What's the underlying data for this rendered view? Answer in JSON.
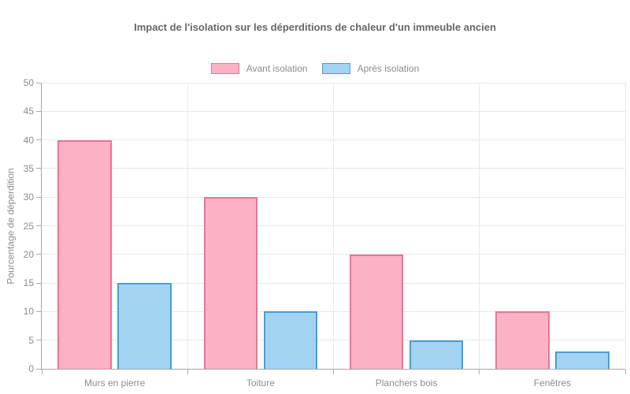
{
  "title": "Impact de l'isolation sur les déperditions de chaleur d'un immeuble ancien",
  "chart_data": {
    "type": "bar",
    "title": "Impact de l'isolation sur les déperditions de chaleur d'un immeuble ancien",
    "categories": [
      "Murs en pierre",
      "Toiture",
      "Planchers bois",
      "Fenêtres"
    ],
    "series": [
      {
        "name": "Avant isolation",
        "values": [
          40,
          30,
          20,
          10
        ],
        "fill": "#fdb1c4",
        "border": "#f0709a"
      },
      {
        "name": "Après isolation",
        "values": [
          15,
          10,
          5,
          3
        ],
        "fill": "#a2d3f3",
        "border": "#459fd9"
      }
    ],
    "xlabel": "",
    "ylabel": "Pourcentage de déperdition",
    "ylim": [
      0,
      50
    ],
    "ytick_step": 5,
    "yticks": [
      0,
      5,
      10,
      15,
      20,
      25,
      30,
      35,
      40,
      45,
      50
    ],
    "grid": true,
    "legend_position": "top"
  },
  "colors": {
    "grid": "#e8e8e8",
    "axis": "#a6a6a6",
    "tick": "#ababab",
    "tick_text": "#8c8c8c",
    "title_text": "#666666",
    "legend_text": "#8c8c8c",
    "background": "#ffffff"
  }
}
